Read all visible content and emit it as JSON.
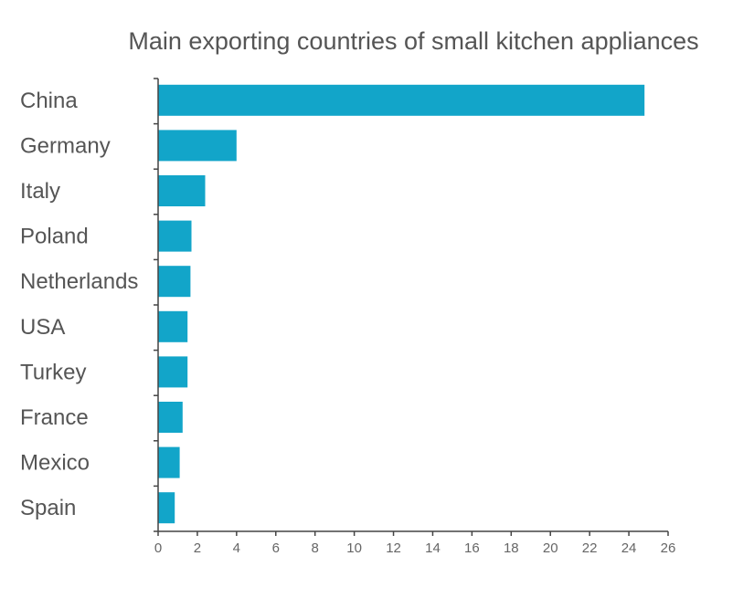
{
  "chart_data": {
    "type": "bar",
    "orientation": "horizontal",
    "title": "Main exporting countries of small kitchen appliances",
    "categories": [
      "China",
      "Germany",
      "Italy",
      "Poland",
      "Netherlands",
      "USA",
      "Turkey",
      "France",
      "Mexico",
      "Spain"
    ],
    "values": [
      24.8,
      4.0,
      2.4,
      1.7,
      1.65,
      1.5,
      1.5,
      1.25,
      1.1,
      0.85
    ],
    "xlim": [
      0,
      26
    ],
    "xticks": [
      "0",
      "2",
      "4",
      "6",
      "8",
      "10",
      "12",
      "14",
      "16",
      "18",
      "20",
      "22",
      "24",
      "26"
    ],
    "bar_color": "#12a5c9",
    "axis_color": "#444444",
    "grid": false,
    "legend": "none"
  }
}
